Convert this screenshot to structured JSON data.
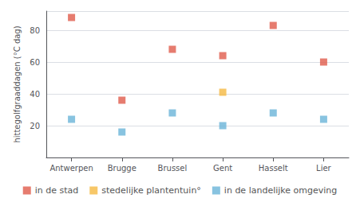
{
  "chart_data": {
    "type": "scatter",
    "categories": [
      "Antwerpen",
      "Brugge",
      "Brussel",
      "Gent",
      "Hasselt",
      "Lier"
    ],
    "series": [
      {
        "name": "in de stad",
        "color": "#e05b4b",
        "marker": "square",
        "values": [
          88,
          36,
          68,
          64,
          83,
          60
        ]
      },
      {
        "name": "stedelijke plantentuin°",
        "color": "#f5b942",
        "marker": "square",
        "values": [
          null,
          null,
          null,
          41,
          null,
          null
        ]
      },
      {
        "name": "in de landelijke omgeving",
        "color": "#6ab4d8",
        "marker": "square",
        "values": [
          24,
          16,
          28,
          20,
          28,
          24
        ]
      }
    ],
    "ylabel": "hittegolfgraaddagen (°C dag)",
    "ylim": [
      0,
      92
    ],
    "yticks": [
      {
        "value": 0,
        "label": ""
      },
      20,
      40,
      60,
      80
    ],
    "grid": true,
    "legend": "bottom"
  }
}
